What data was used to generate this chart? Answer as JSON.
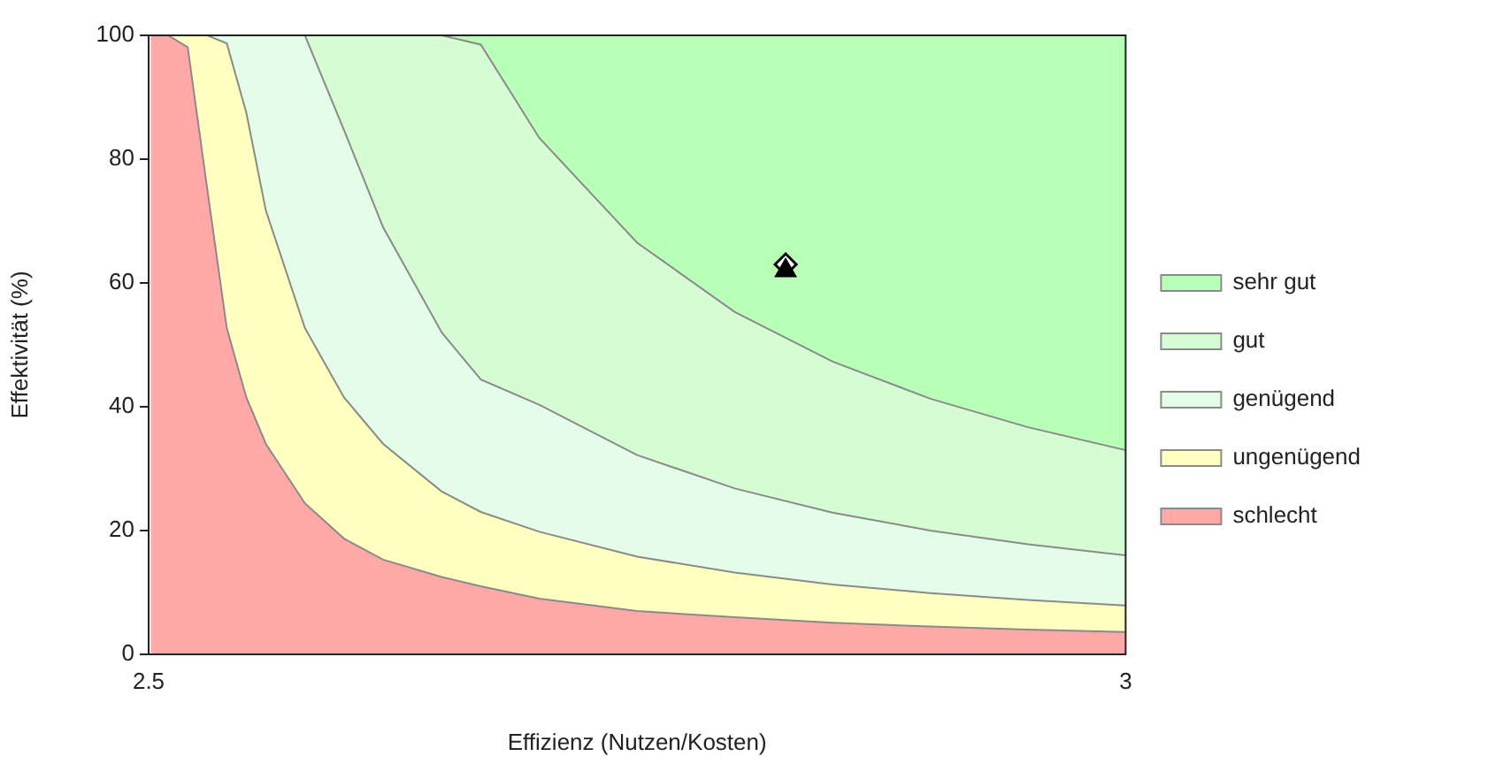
{
  "chart_data": {
    "type": "area",
    "stacked": true,
    "xlabel": "Effizienz (Nutzen/Kosten)",
    "ylabel": "Effektivität (%)",
    "x": [
      2.501,
      2.51,
      2.52,
      2.53,
      2.54,
      2.55,
      2.56,
      2.58,
      2.6,
      2.62,
      2.65,
      2.67,
      2.7,
      2.75,
      2.8,
      2.85,
      2.9,
      2.95,
      3.0
    ],
    "xlim": [
      2.5,
      3
    ],
    "xticks": [
      2.5,
      3
    ],
    "ylim": [
      0,
      100
    ],
    "yticks": [
      0,
      20,
      40,
      60,
      80,
      100
    ],
    "legend": "right",
    "series": [
      {
        "name": "schlecht",
        "color": "#ffa8a8",
        "values": [
          100,
          100,
          98.1,
          75.2,
          52.7,
          41.5,
          34,
          24.4,
          18.7,
          15.3,
          12.5,
          11,
          9,
          7,
          6,
          5.1,
          4.5,
          4.0,
          3.6
        ]
      },
      {
        "name": "ungenügend",
        "color": "#ffffc0",
        "values": [
          0,
          0,
          1.9,
          24.8,
          46,
          46,
          37.7,
          28.3,
          22.8,
          18.7,
          13.8,
          12,
          10.8,
          8.8,
          7.2,
          6.2,
          5.4,
          4.8,
          4.3
        ]
      },
      {
        "name": "genügend",
        "color": "#e4fde8",
        "values": [
          0,
          0,
          0,
          0,
          1.3,
          12.5,
          28.3,
          47.3,
          43.2,
          35,
          25.7,
          21.4,
          20.5,
          16.4,
          13.6,
          11.6,
          10.1,
          9.0,
          8.1
        ]
      },
      {
        "name": "gut",
        "color": "#d6fcd4",
        "values": [
          0,
          0,
          0,
          0,
          0,
          0,
          0,
          0,
          15.3,
          31,
          48,
          54.1,
          43.1,
          34.3,
          28.5,
          24.4,
          21.3,
          18.9,
          17.0
        ]
      },
      {
        "name": "sehr gut",
        "color": "#b8ffb8",
        "values": [
          0,
          0,
          0,
          0,
          0,
          0,
          0,
          0,
          0,
          0,
          0,
          1.5,
          16.6,
          33.5,
          44.7,
          52.7,
          58.7,
          63.3,
          67.0
        ]
      },
      {
        "type": "scatter",
        "marker": "triangle",
        "color": "#000000",
        "x": [
          2.826
        ],
        "values": [
          62
        ]
      },
      {
        "type": "scatter",
        "marker": "diamond",
        "color": "#ffffff",
        "x": [
          2.826
        ],
        "values": [
          63
        ]
      }
    ]
  }
}
